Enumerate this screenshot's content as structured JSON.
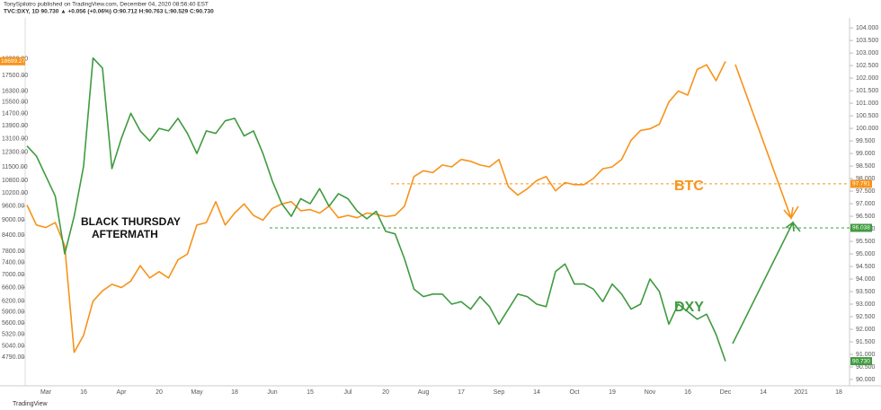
{
  "chart_data": {
    "type": "line",
    "title": "TonySpilotro published on TradingView.com, December 04, 2020 08:56:40 EST",
    "subtitle": "TVC:DXY, 1D 90.730 ▲ +0.056 (+0.06%) O:90.712 H:90.763 L:90.529 C:90.730",
    "annotations": [
      "BLACK THURSDAY",
      "AFTERMATH",
      "BTC",
      "DXY"
    ],
    "source": "TradingView",
    "categories": [
      null,
      null,
      "Mar",
      null,
      null,
      null,
      "16",
      null,
      null,
      null,
      "Apr",
      null,
      null,
      null,
      "20",
      null,
      null,
      null,
      "May",
      null,
      null,
      null,
      "18",
      null,
      null,
      null,
      "Jun",
      null,
      null,
      null,
      "15",
      null,
      null,
      null,
      "Jul",
      null,
      null,
      null,
      "20",
      null,
      null,
      null,
      "Aug",
      null,
      null,
      null,
      "17",
      null,
      null,
      null,
      "Sep",
      null,
      null,
      null,
      "14",
      null,
      null,
      null,
      "Oct",
      null,
      null,
      null,
      "19",
      null,
      null,
      null,
      "Nov",
      null,
      null,
      null,
      "16",
      null,
      null,
      null,
      "Dec",
      null,
      null,
      null,
      "14",
      null,
      null,
      null,
      "2021",
      null,
      null,
      null,
      "18"
    ],
    "log_y": true,
    "ylim": [
      4200,
      21900
    ],
    "yticks": [
      {
        "value": 4790,
        "label": "4790.00"
      },
      {
        "value": 5040,
        "label": "5040.00"
      },
      {
        "value": 5320,
        "label": "5320.00"
      },
      {
        "value": 5600,
        "label": "5600.00"
      },
      {
        "value": 5900,
        "label": "5900.00"
      },
      {
        "value": 6200,
        "label": "6200.00"
      },
      {
        "value": 6600,
        "label": "6600.00"
      },
      {
        "value": 7000,
        "label": "7000.00"
      },
      {
        "value": 7400,
        "label": "7400.00"
      },
      {
        "value": 7800,
        "label": "7800.00"
      },
      {
        "value": 8400,
        "label": "8400.00"
      },
      {
        "value": 9000,
        "label": "9000.00"
      },
      {
        "value": 9600,
        "label": "9600.00"
      },
      {
        "value": 10200,
        "label": "10200.00"
      },
      {
        "value": 10800,
        "label": "10800.00"
      },
      {
        "value": 11500,
        "label": "11500.00"
      },
      {
        "value": 12300,
        "label": "12300.00"
      },
      {
        "value": 13100,
        "label": "13100.00"
      },
      {
        "value": 13900,
        "label": "13900.00"
      },
      {
        "value": 14700,
        "label": "14700.00"
      },
      {
        "value": 15500,
        "label": "15500.00"
      },
      {
        "value": 16300,
        "label": "16300.00"
      },
      {
        "value": 17500,
        "label": "17500.00"
      },
      {
        "value": 18900,
        "label": "18900.00"
      }
    ],
    "y2lim": [
      89.75,
      104.04
    ],
    "y2ticks": [
      {
        "value": 104,
        "label": "104.000"
      },
      {
        "value": 103.5,
        "label": "103.500"
      },
      {
        "value": 103,
        "label": "103.000"
      },
      {
        "value": 102.5,
        "label": "102.500"
      },
      {
        "value": 102,
        "label": "102.000"
      },
      {
        "value": 101.5,
        "label": "101.500"
      },
      {
        "value": 101,
        "label": "101.000"
      },
      {
        "value": 100.5,
        "label": "100.500"
      },
      {
        "value": 100,
        "label": "100.000"
      },
      {
        "value": 99.5,
        "label": "99.500"
      },
      {
        "value": 99,
        "label": "99.000"
      },
      {
        "value": 98.5,
        "label": "98.500"
      },
      {
        "value": 98,
        "label": "98.000"
      },
      {
        "value": 97.5,
        "label": "97.500"
      },
      {
        "value": 97,
        "label": "97.000"
      },
      {
        "value": 96.5,
        "label": "96.500"
      },
      {
        "value": 96,
        "label": "96.000"
      },
      {
        "value": 95.5,
        "label": "95.500"
      },
      {
        "value": 95,
        "label": "95.000"
      },
      {
        "value": 94.5,
        "label": "94.500"
      },
      {
        "value": 94,
        "label": "94.000"
      },
      {
        "value": 93.5,
        "label": "93.500"
      },
      {
        "value": 93,
        "label": "93.000"
      },
      {
        "value": 92.5,
        "label": "92.500"
      },
      {
        "value": 92,
        "label": "92.000"
      },
      {
        "value": 91.5,
        "label": "91.500"
      },
      {
        "value": 91,
        "label": "91.000"
      },
      {
        "value": 90.5,
        "label": "90.500"
      },
      {
        "value": 90,
        "label": "90.000"
      }
    ],
    "ref_lines": [
      {
        "value": 97.791,
        "color": "#f7931a"
      },
      {
        "value": 96.038,
        "color": "#3f9b3f"
      }
    ],
    "series": [
      {
        "name": "BTC",
        "color": "#f7931a",
        "last_label": "18699.27",
        "values": [
          9650,
          8800,
          8700,
          8900,
          8000,
          4900,
          5300,
          6200,
          6500,
          6700,
          6600,
          6800,
          7300,
          6900,
          7100,
          6900,
          7500,
          7700,
          8800,
          8900,
          9800,
          8800,
          9300,
          9700,
          9200,
          9000,
          9500,
          9700,
          9800,
          9400,
          9450,
          9300,
          9600,
          9100,
          9200,
          9100,
          9300,
          9250,
          9150,
          9200,
          9600,
          11000,
          11300,
          11200,
          11600,
          11500,
          11900,
          11800,
          11600,
          11500,
          11900,
          10500,
          10100,
          10400,
          10800,
          11000,
          10300,
          10700,
          10600,
          10600,
          10900,
          11400,
          11500,
          11900,
          13000,
          13600,
          13700,
          14000,
          15500,
          16300,
          16000,
          18000,
          18400,
          17100,
          18699.27,
          null,
          null,
          null,
          null,
          null,
          null,
          null,
          null,
          null,
          null,
          null,
          null
        ]
      },
      {
        "name": "DXY",
        "color": "#3f9b3f",
        "axis": "y2",
        "last_label": "90.730",
        "values": [
          99.3,
          98.9,
          98.1,
          97.3,
          95.0,
          96.5,
          98.5,
          102.8,
          102.4,
          98.4,
          99.6,
          100.6,
          99.9,
          99.5,
          100.0,
          99.9,
          100.4,
          99.8,
          99.0,
          99.9,
          99.8,
          100.3,
          100.4,
          99.7,
          99.9,
          99.0,
          97.9,
          97.0,
          96.5,
          97.2,
          97.0,
          97.6,
          96.9,
          97.4,
          97.2,
          96.7,
          96.4,
          96.7,
          95.9,
          95.8,
          94.8,
          93.6,
          93.3,
          93.4,
          93.4,
          93.0,
          93.1,
          92.8,
          93.3,
          92.9,
          92.2,
          92.8,
          93.4,
          93.3,
          93.0,
          92.9,
          94.3,
          94.6,
          93.8,
          93.8,
          93.6,
          93.1,
          93.8,
          93.4,
          92.8,
          93.0,
          94.0,
          93.5,
          92.2,
          93.0,
          92.7,
          92.4,
          92.6,
          91.8,
          90.73,
          null,
          null,
          null,
          null,
          null,
          null,
          null,
          null,
          null,
          null,
          null,
          null
        ]
      }
    ]
  }
}
